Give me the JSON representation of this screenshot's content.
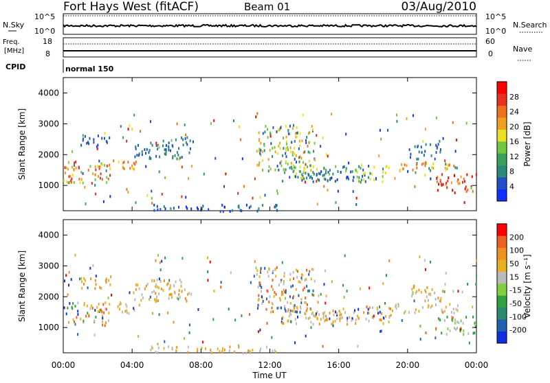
{
  "header": {
    "station": "Fort Hays West (fitACF)",
    "beam": "Beam 01",
    "date": "03/Aug/2010"
  },
  "noise_panel": {
    "left_label": "N.Sky",
    "right_label": "N.Search",
    "ticks_left": [
      "10^5",
      "10^0"
    ],
    "ticks_right": [
      "10^5",
      "10^0"
    ]
  },
  "freq_panel": {
    "left_label_1": "Freq.",
    "left_label_2": "[MHz]",
    "right_label": "Nave",
    "ticks_left": [
      "18",
      "8"
    ],
    "ticks_right": [
      "60",
      "0"
    ]
  },
  "cpid": {
    "label": "CPID",
    "mode": "normal 150"
  },
  "chart_data": [
    {
      "type": "heatmap",
      "quantity": "Power",
      "ylabel": "Slant Range [km]",
      "ylim": [
        180,
        4500
      ],
      "yticks": [
        "1000",
        "2000",
        "3000",
        "4000"
      ],
      "xlim": [
        0,
        24
      ],
      "colorbar": {
        "label": "Power [dB]",
        "ticks": [
          "4",
          "8",
          "12",
          "16",
          "20",
          "24",
          "28"
        ],
        "colors": [
          "#1030ff",
          "#2050c8",
          "#2a8a7a",
          "#3aa05a",
          "#70c840",
          "#e8e020",
          "#f0a020",
          "#f07020",
          "#e83020",
          "#ff0000"
        ]
      },
      "features": [
        {
          "t0": 0.0,
          "t1": 2.6,
          "r0": 1100,
          "r1": 1850,
          "levels": [
            4,
            5,
            6,
            7,
            8
          ]
        },
        {
          "t0": 2.6,
          "t1": 4.4,
          "r0": 1500,
          "r1": 1850,
          "levels": [
            5,
            6,
            7
          ]
        },
        {
          "t0": 4.0,
          "t1": 7.4,
          "r0": 1900,
          "r1": 2600,
          "levels": [
            1,
            2
          ]
        },
        {
          "t0": 1.0,
          "t1": 2.8,
          "r0": 2300,
          "r1": 2700,
          "levels": [
            1
          ]
        },
        {
          "t0": 5.0,
          "t1": 12.6,
          "r0": 200,
          "r1": 420,
          "levels": [
            0,
            1,
            2
          ]
        },
        {
          "t0": 11.2,
          "t1": 14.6,
          "r0": 1500,
          "r1": 3000,
          "levels": [
            1,
            2,
            4,
            5,
            6
          ]
        },
        {
          "t0": 12.6,
          "t1": 19.0,
          "r0": 1150,
          "r1": 1700,
          "levels": [
            1,
            2,
            3,
            4,
            5
          ]
        },
        {
          "t0": 14.0,
          "t1": 17.0,
          "r0": 1200,
          "r1": 1500,
          "levels": [
            0,
            1,
            2
          ]
        },
        {
          "t0": 19.0,
          "t1": 23.0,
          "r0": 1500,
          "r1": 1800,
          "levels": [
            2,
            5,
            6,
            7
          ]
        },
        {
          "t0": 21.6,
          "t1": 24.0,
          "r0": 800,
          "r1": 1400,
          "levels": [
            6,
            7,
            8,
            9
          ]
        },
        {
          "t0": 20.0,
          "t1": 22.0,
          "r0": 1900,
          "r1": 2400,
          "levels": [
            1,
            2
          ]
        }
      ]
    },
    {
      "type": "heatmap",
      "quantity": "Velocity",
      "ylabel": "Slant Range [km]",
      "ylim": [
        180,
        4500
      ],
      "yticks": [
        "1000",
        "2000",
        "3000",
        "4000"
      ],
      "xlim": [
        0,
        24
      ],
      "xticks": [
        "00:00",
        "04:00",
        "08:00",
        "12:00",
        "16:00",
        "20:00",
        "00:00"
      ],
      "xlabel": "Time UT",
      "colorbar": {
        "label": "Velocity [m s⁻¹]",
        "ticks": [
          "200",
          "100",
          "50",
          "15",
          "-15",
          "-50",
          "-100",
          "-200"
        ],
        "colors": [
          "#1030e0",
          "#2060b0",
          "#2a8a70",
          "#30a040",
          "#80d040",
          "#bbbbbb",
          "#e8b020",
          "#f09020",
          "#f06020",
          "#ff0000"
        ]
      },
      "features": [
        {
          "t0": 0.0,
          "t1": 2.6,
          "r0": 1100,
          "r1": 1850,
          "levels": [
            0,
            3,
            5,
            6,
            8
          ]
        },
        {
          "t0": 2.6,
          "t1": 4.4,
          "r0": 1500,
          "r1": 1850,
          "levels": [
            5,
            6
          ]
        },
        {
          "t0": 4.0,
          "t1": 7.4,
          "r0": 1900,
          "r1": 2600,
          "levels": [
            5,
            6,
            7
          ]
        },
        {
          "t0": 1.0,
          "t1": 2.8,
          "r0": 2300,
          "r1": 2700,
          "levels": [
            6,
            7
          ]
        },
        {
          "t0": 5.0,
          "t1": 12.6,
          "r0": 200,
          "r1": 420,
          "levels": [
            5,
            6,
            7
          ]
        },
        {
          "t0": 11.2,
          "t1": 14.6,
          "r0": 1500,
          "r1": 3000,
          "levels": [
            1,
            5,
            6,
            8
          ]
        },
        {
          "t0": 12.6,
          "t1": 19.0,
          "r0": 1150,
          "r1": 1700,
          "levels": [
            0,
            5,
            6,
            7
          ]
        },
        {
          "t0": 14.0,
          "t1": 17.0,
          "r0": 1200,
          "r1": 1500,
          "levels": [
            5,
            6
          ]
        },
        {
          "t0": 19.0,
          "t1": 23.0,
          "r0": 1500,
          "r1": 1800,
          "levels": [
            5,
            6
          ]
        },
        {
          "t0": 21.6,
          "t1": 24.0,
          "r0": 800,
          "r1": 1400,
          "levels": [
            3,
            4,
            5
          ]
        },
        {
          "t0": 20.0,
          "t1": 22.0,
          "r0": 1900,
          "r1": 2400,
          "levels": [
            5,
            6,
            7
          ]
        }
      ]
    }
  ]
}
